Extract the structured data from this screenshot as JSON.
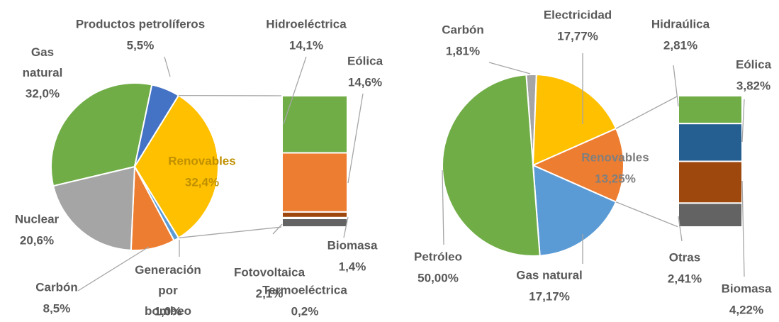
{
  "chart_data": [
    {
      "type": "bar-of-pie",
      "categories": [
        "Gas natural",
        "Productos petrolíferos",
        "Renovables",
        "Generación por bombeo",
        "Carbón",
        "Nuclear"
      ],
      "values": [
        32.0,
        5.5,
        32.4,
        1.0,
        8.5,
        20.6
      ],
      "value_labels": [
        "32,0%",
        "5,5%",
        "32,4%",
        "1,0%",
        "8,5%",
        "20,6%"
      ],
      "colors": [
        "#70ad47",
        "#4472c4",
        "#ffc000",
        "#5b9bd5",
        "#ed7d31",
        "#a5a5a5"
      ],
      "split": {
        "categories": [
          "Hidroeléctrica",
          "Eólica",
          "Biomasa",
          "Termoeléctrica",
          "Fotovoltaica"
        ],
        "values": [
          14.1,
          14.6,
          1.4,
          0.2,
          2.1
        ],
        "value_labels": [
          "14,1%",
          "14,6%",
          "1,4%",
          "0,2%",
          "2,1%"
        ],
        "colors": [
          "#70ad47",
          "#ed7d31",
          "#9e480e",
          "#264478",
          "#636363"
        ]
      }
    },
    {
      "type": "bar-of-pie",
      "categories": [
        "Carbón",
        "Electricidad",
        "Renovables",
        "Gas natural",
        "Petróleo"
      ],
      "values": [
        1.81,
        17.77,
        13.25,
        17.17,
        50.0
      ],
      "value_labels": [
        "1,81%",
        "17,77%",
        "13,25%",
        "17,17%",
        "50,00%"
      ],
      "colors": [
        "#a5a5a5",
        "#ffc000",
        "#ed7d31",
        "#5b9bd5",
        "#70ad47"
      ],
      "split": {
        "categories": [
          "Hidraúlica",
          "Eólica",
          "Biomasa",
          "Otras"
        ],
        "values": [
          2.81,
          3.82,
          4.22,
          2.41
        ],
        "value_labels": [
          "2,81%",
          "3,82%",
          "4,22%",
          "2,41%"
        ],
        "colors": [
          "#70ad47",
          "#255e91",
          "#9e480e",
          "#636363"
        ]
      }
    }
  ]
}
